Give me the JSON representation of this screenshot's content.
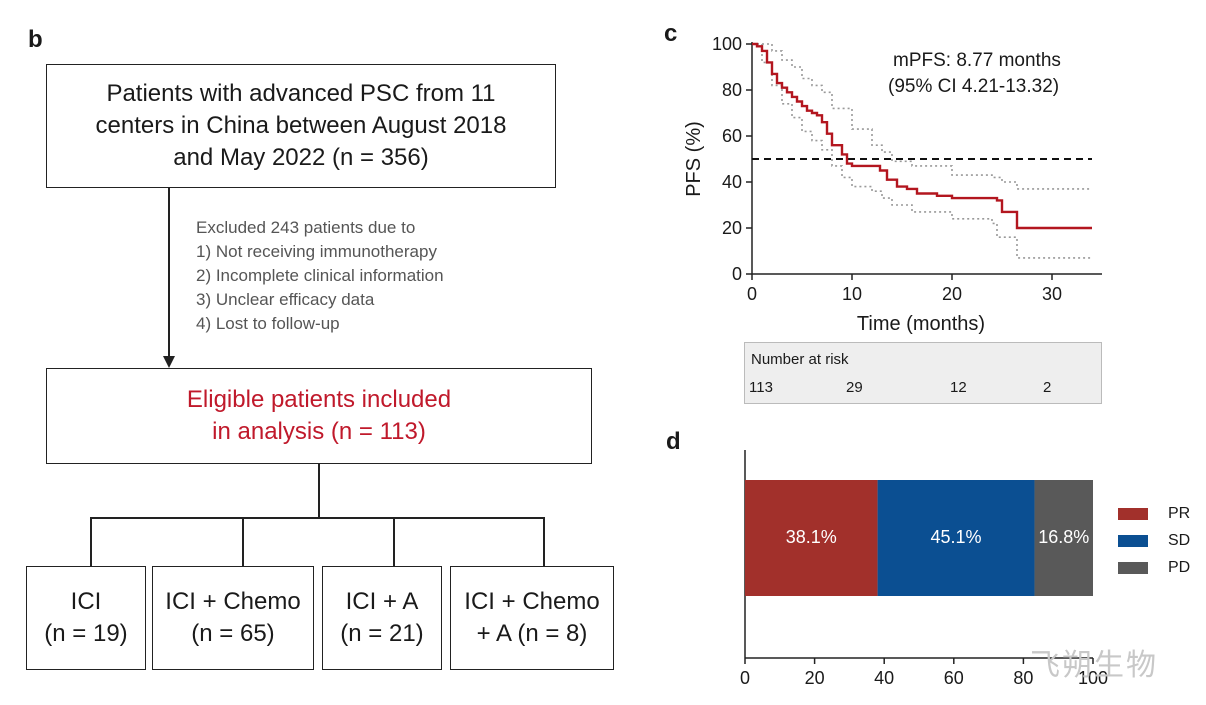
{
  "panel_b": {
    "letter": "b",
    "top_box": "Patients with advanced PSC from 11\ncenters in China between August 2018\nand May 2022 (n = 356)",
    "exclusion": {
      "header": "Excluded 243 patients due to",
      "reasons": [
        "1) Not receiving immunotherapy",
        "2) Incomplete clinical information",
        "3) Unclear efficacy data",
        "4) Lost to follow-up"
      ]
    },
    "eligible_box": "Eligible patients included\nin analysis (n = 113)",
    "groups": [
      {
        "label": "ICI\n(n = 19)"
      },
      {
        "label": "ICI + Chemo\n(n = 65)"
      },
      {
        "label": "ICI + A\n(n = 21)"
      },
      {
        "label": "ICI + Chemo\n+ A (n = 8)"
      }
    ]
  },
  "panel_c": {
    "letter": "c",
    "annotation_line1": "mPFS: 8.77 months",
    "annotation_line2": "(95% CI 4.21-13.32)",
    "risk_table": {
      "title": "Number at risk",
      "values": [
        "113",
        "29",
        "12",
        "2"
      ]
    }
  },
  "panel_d": {
    "letter": "d"
  },
  "colors": {
    "km_line": "#b3161f",
    "ci_line": "#999999",
    "pr": "#a2302b",
    "sd": "#0b4f92",
    "pd": "#595959",
    "eligible_text": "#c0192b"
  },
  "watermark": "飞朔生物",
  "chart_data": [
    {
      "type": "line",
      "xlabel": "Time (months)",
      "ylabel": "PFS (%)",
      "xlim": [
        0,
        35
      ],
      "ylim": [
        0,
        100
      ],
      "xticks": [
        0,
        10,
        20,
        30
      ],
      "yticks": [
        0,
        20,
        40,
        60,
        80,
        100
      ],
      "reference_line_y": 50,
      "series": [
        {
          "x": [
            0,
            0.5,
            1,
            1.5,
            2,
            2.5,
            3,
            3.5,
            4,
            4.5,
            5,
            5.5,
            6,
            6.5,
            7,
            7.5,
            8,
            9,
            9.5,
            10,
            12,
            12.8,
            13.5,
            14.5,
            15.5,
            16.5,
            18.5,
            20,
            22,
            24.5,
            25,
            26.5,
            34
          ],
          "y": [
            100,
            99,
            97,
            92,
            87,
            83,
            81,
            79,
            77,
            75,
            73,
            71,
            70,
            69,
            66,
            61,
            56,
            52,
            48,
            47,
            47,
            45,
            41,
            38,
            37,
            35,
            34,
            33,
            33,
            32,
            27,
            20,
            20
          ]
        },
        {
          "x": [
            0,
            1,
            2,
            3,
            4,
            5,
            6,
            7,
            8,
            10,
            12,
            13,
            14,
            16,
            20,
            24,
            25,
            26.5,
            34
          ],
          "y": [
            100,
            100,
            97,
            93,
            90,
            85,
            82,
            79,
            72,
            63,
            56,
            53,
            49,
            47,
            43,
            42,
            40,
            37,
            37
          ]
        },
        {
          "x": [
            0,
            1,
            2,
            3,
            4,
            5,
            6,
            7,
            8,
            9,
            10,
            12,
            13,
            14,
            16,
            20,
            24,
            24.5,
            26.5,
            34
          ],
          "y": [
            100,
            92,
            82,
            74,
            68,
            62,
            58,
            54,
            47,
            42,
            38,
            36,
            33,
            30,
            27,
            24,
            22,
            16,
            7,
            7
          ]
        }
      ]
    },
    {
      "type": "bar",
      "orientation": "horizontal",
      "stacked": true,
      "xlim": [
        0,
        100
      ],
      "xticks": [
        0,
        20,
        40,
        60,
        80,
        100
      ],
      "series": [
        {
          "name": "PR",
          "value": 38.1,
          "label": "38.1%"
        },
        {
          "name": "SD",
          "value": 45.1,
          "label": "45.1%"
        },
        {
          "name": "PD",
          "value": 16.8,
          "label": "16.8%"
        }
      ]
    }
  ]
}
